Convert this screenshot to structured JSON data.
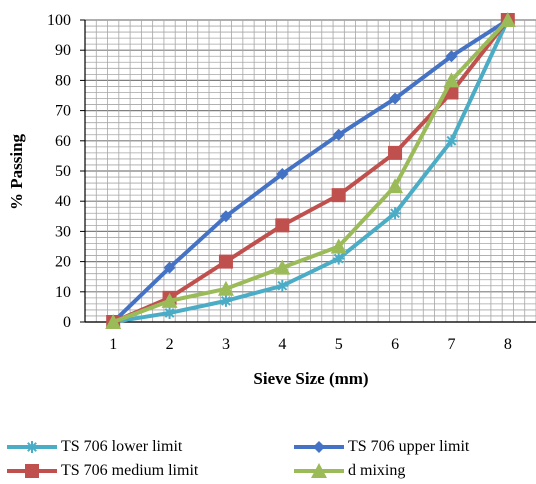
{
  "chart_data": {
    "type": "line",
    "x": [
      1,
      2,
      3,
      4,
      5,
      6,
      7,
      8
    ],
    "xlabel": "Sieve Size (mm)",
    "ylabel": "% Passing",
    "ylim": [
      0,
      100
    ],
    "yticks": [
      0,
      10,
      20,
      30,
      40,
      50,
      60,
      70,
      80,
      90,
      100
    ],
    "xticks": [
      1,
      2,
      3,
      4,
      5,
      6,
      7,
      8
    ],
    "grid": true,
    "legend_position": "bottom",
    "series": [
      {
        "name": "TS 706 lower limit",
        "color": "#4bacc6",
        "marker": "asterisk",
        "values": [
          0,
          3,
          7,
          12,
          21,
          36,
          60,
          100
        ]
      },
      {
        "name": "TS 706 upper limit",
        "color": "#4472c4",
        "marker": "diamond",
        "values": [
          0,
          18,
          35,
          49,
          62,
          74,
          88,
          100
        ]
      },
      {
        "name": "TS 706 medium limit",
        "color": "#c0504d",
        "marker": "square",
        "values": [
          0,
          8,
          20,
          32,
          42,
          56,
          76,
          100
        ]
      },
      {
        "name": "d mixing",
        "color": "#9bbb59",
        "marker": "triangle",
        "values": [
          0,
          7,
          11,
          18,
          25,
          45,
          80,
          100
        ]
      }
    ]
  }
}
